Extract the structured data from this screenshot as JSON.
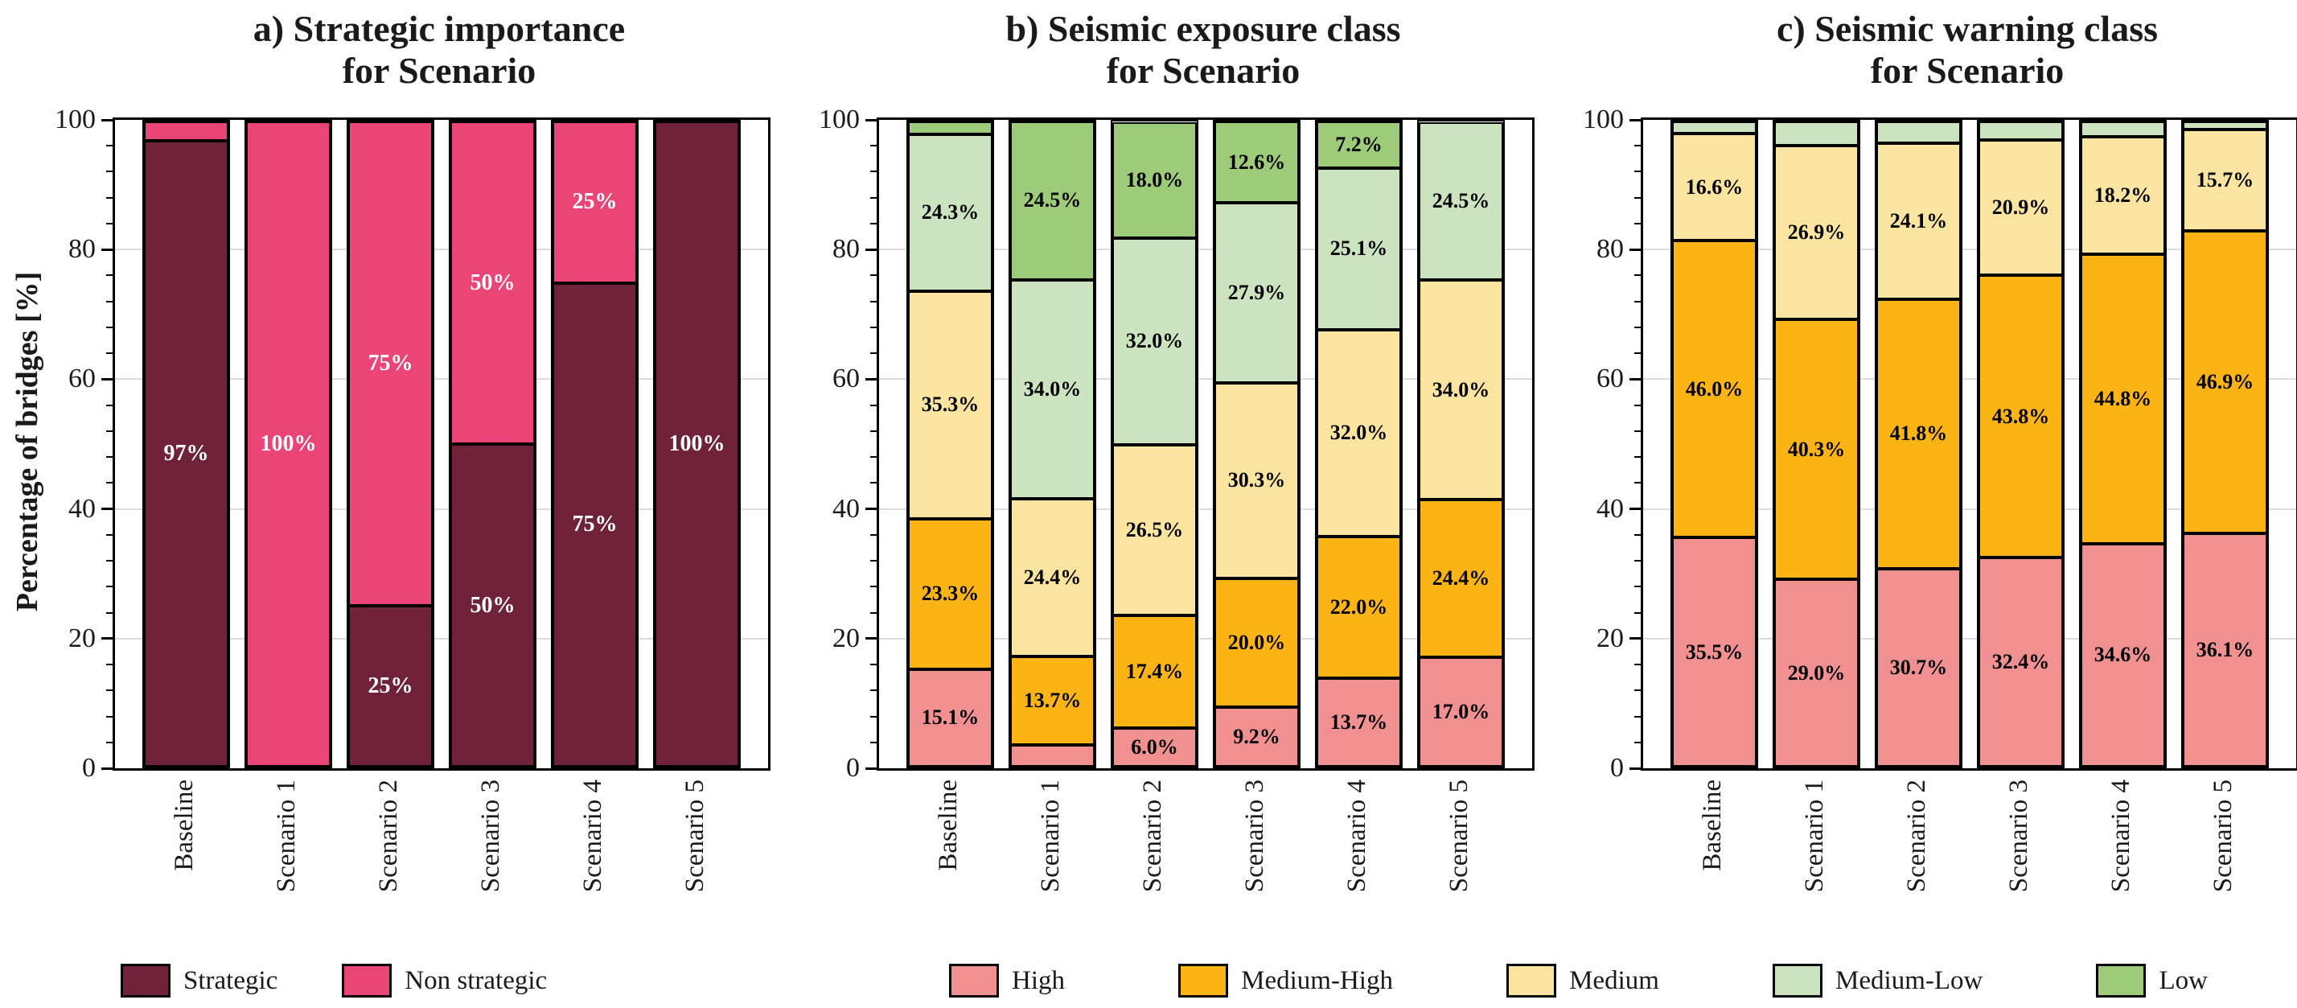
{
  "y_axis": {
    "label": "Percentage of bridges [%]",
    "ticks": [
      0,
      20,
      40,
      60,
      80,
      100
    ],
    "tick_labels": [
      "0",
      "20",
      "40",
      "60",
      "80",
      "100"
    ],
    "minor_step": 4,
    "ylim": [
      0,
      100
    ],
    "grid": "horizontal-major"
  },
  "colors": {
    "strategic": "#6F2239",
    "non_strategic": "#EB4578",
    "high": "#F19090",
    "medium_high": "#FCB415",
    "medium": "#FBE4A0",
    "medium_low": "#CBE3BE",
    "low": "#9DCB79",
    "gridline": "#DCDCDC",
    "text": "#1A1A1A"
  },
  "chart_data": [
    {
      "type": "bar",
      "stacked": true,
      "id": "a",
      "title_lines": [
        "a) Strategic importance",
        "for Scenario"
      ],
      "categories": [
        "Baseline",
        "Scenario 1",
        "Scenario 2",
        "Scenario 3",
        "Scenario 4",
        "Scenario 5"
      ],
      "ylim": [
        0,
        100
      ],
      "label_color": "#FFFFFF",
      "series": [
        {
          "name": "Strategic",
          "color": "#6F2239",
          "values": [
            97,
            0,
            25,
            50,
            75,
            100
          ],
          "labels": [
            "97%",
            "",
            "25%",
            "50%",
            "75%",
            "100%"
          ]
        },
        {
          "name": "Non strategic",
          "color": "#EB4578",
          "values": [
            3,
            100,
            75,
            50,
            25,
            0
          ],
          "labels": [
            "",
            "100%",
            "75%",
            "50%",
            "25%",
            ""
          ]
        }
      ]
    },
    {
      "type": "bar",
      "stacked": true,
      "id": "b",
      "title_lines": [
        "b) Seismic exposure class",
        "for Scenario"
      ],
      "categories": [
        "Baseline",
        "Scenario 1",
        "Scenario 2",
        "Scenario 3",
        "Scenario 4",
        "Scenario 5"
      ],
      "ylim": [
        0,
        100
      ],
      "label_color": "#000000",
      "series": [
        {
          "name": "High",
          "color": "#F19090",
          "values": [
            15.1,
            3.4,
            6.0,
            9.2,
            13.7,
            17.0
          ],
          "labels": [
            "15.1%",
            "",
            "6.0%",
            "9.2%",
            "13.7%",
            "17.0%"
          ]
        },
        {
          "name": "Medium-High",
          "color": "#FCB415",
          "values": [
            23.3,
            13.7,
            17.4,
            20.0,
            22.0,
            24.4
          ],
          "labels": [
            "23.3%",
            "13.7%",
            "17.4%",
            "20.0%",
            "22.0%",
            "24.4%"
          ]
        },
        {
          "name": "Medium",
          "color": "#FBE4A0",
          "values": [
            35.3,
            24.4,
            26.5,
            30.3,
            32.0,
            34.0
          ],
          "labels": [
            "35.3%",
            "24.4%",
            "26.5%",
            "30.3%",
            "32.0%",
            "34.0%"
          ]
        },
        {
          "name": "Medium-Low",
          "color": "#CBE3BE",
          "values": [
            24.3,
            34.0,
            32.0,
            27.9,
            25.1,
            24.5
          ],
          "labels": [
            "24.3%",
            "34.0%",
            "32.0%",
            "27.9%",
            "25.1%",
            "24.5%"
          ]
        },
        {
          "name": "Low",
          "color": "#9DCB79",
          "values": [
            2.0,
            24.5,
            18.0,
            12.6,
            7.2,
            0
          ],
          "labels": [
            "",
            "24.5%",
            "18.0%",
            "12.6%",
            "7.2%",
            ""
          ]
        }
      ]
    },
    {
      "type": "bar",
      "stacked": true,
      "id": "c",
      "title_lines": [
        "c) Seismic warning class",
        "for Scenario"
      ],
      "categories": [
        "Baseline",
        "Scenario 1",
        "Scenario 2",
        "Scenario 3",
        "Scenario 4",
        "Scenario 5"
      ],
      "ylim": [
        0,
        100
      ],
      "label_color": "#000000",
      "series": [
        {
          "name": "High",
          "color": "#F19090",
          "values": [
            35.5,
            29.0,
            30.7,
            32.4,
            34.6,
            36.1
          ],
          "labels": [
            "35.5%",
            "29.0%",
            "30.7%",
            "32.4%",
            "34.6%",
            "36.1%"
          ]
        },
        {
          "name": "Medium-High",
          "color": "#FCB415",
          "values": [
            46.0,
            40.3,
            41.8,
            43.8,
            44.8,
            46.9
          ],
          "labels": [
            "46.0%",
            "40.3%",
            "41.8%",
            "43.8%",
            "44.8%",
            "46.9%"
          ]
        },
        {
          "name": "Medium",
          "color": "#FBE4A0",
          "values": [
            16.6,
            26.9,
            24.1,
            20.9,
            18.2,
            15.7
          ],
          "labels": [
            "16.6%",
            "26.9%",
            "24.1%",
            "20.9%",
            "18.2%",
            "15.7%"
          ]
        },
        {
          "name": "Medium-Low",
          "color": "#CBE3BE",
          "values": [
            1.9,
            3.8,
            3.4,
            2.9,
            2.4,
            1.3
          ],
          "labels": [
            "",
            "",
            "",
            "",
            "",
            ""
          ]
        }
      ]
    }
  ],
  "legends": [
    {
      "id": "strategic-importance",
      "items": [
        {
          "label": "Strategic",
          "color": "#6F2239"
        },
        {
          "label": "Non strategic",
          "color": "#EB4578"
        }
      ]
    },
    {
      "id": "seismic-class",
      "items": [
        {
          "label": "High",
          "color": "#F19090"
        },
        {
          "label": "Medium-High",
          "color": "#FCB415"
        },
        {
          "label": "Medium",
          "color": "#FBE4A0"
        },
        {
          "label": "Medium-Low",
          "color": "#CBE3BE"
        },
        {
          "label": "Low",
          "color": "#9DCB79"
        }
      ]
    }
  ]
}
